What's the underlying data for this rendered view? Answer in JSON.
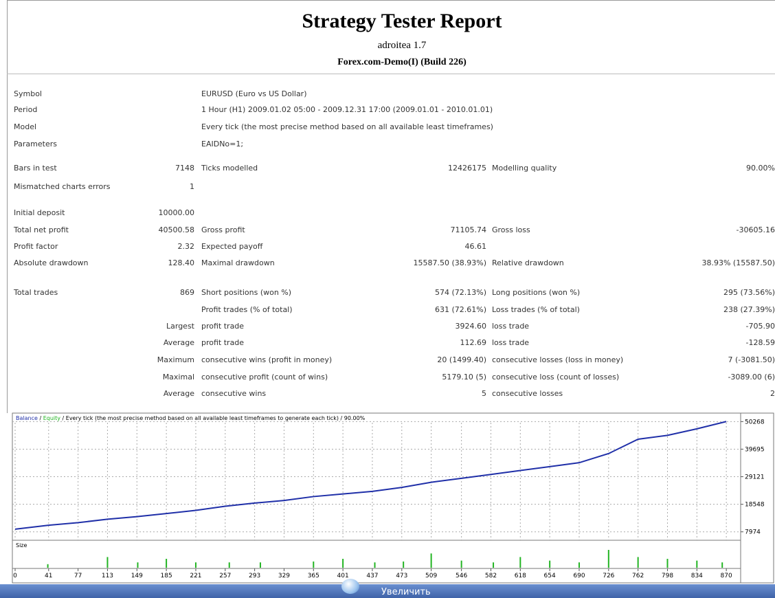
{
  "header": {
    "title": "Strategy Tester Report",
    "subtitle": "adroitea 1.7",
    "server": "Forex.com-Demo(I) (Build 226)"
  },
  "table": {
    "groups": [
      [
        {
          "label": "Symbol",
          "label2": "EURUSD (Euro vs US Dollar)"
        },
        {
          "label": "Period",
          "label2": "1 Hour (H1) 2009.01.02 05:00 - 2009.12.31 17:00 (2009.01.01 - 2010.01.01)"
        },
        {
          "label": "Model",
          "label2": "Every tick (the most precise method based on all available least timeframes)"
        },
        {
          "label": "Parameters",
          "label2": "EAIDNo=1;"
        }
      ],
      [
        {
          "label": "Bars in test",
          "value": "7148",
          "label2": "Ticks modelled",
          "value2": "12426175",
          "label3": "Modelling quality",
          "value3": "90.00%"
        },
        {
          "label": "Mismatched charts errors",
          "value": "1"
        }
      ],
      [
        {
          "label": "Initial deposit",
          "value": "10000.00"
        },
        {
          "label": "Total net profit",
          "value": "40500.58",
          "label2": "Gross profit",
          "value2": "71105.74",
          "label3": "Gross loss",
          "value3": "-30605.16"
        },
        {
          "label": "Profit factor",
          "value": "2.32",
          "label2": "Expected payoff",
          "value2": "46.61"
        },
        {
          "label": "Absolute drawdown",
          "value": "128.40",
          "label2": "Maximal drawdown",
          "value2": "15587.50 (38.93%)",
          "label3": "Relative drawdown",
          "value3": "38.93% (15587.50)"
        }
      ],
      [
        {
          "label": "Total trades",
          "value": "869",
          "label2": "Short positions (won %)",
          "value2": "574 (72.13%)",
          "label3": "Long positions (won %)",
          "value3": "295 (73.56%)"
        },
        {
          "label2": "Profit trades (% of total)",
          "value2": "631 (72.61%)",
          "label3": "Loss trades (% of total)",
          "value3": "238 (27.39%)"
        },
        {
          "value": "Largest",
          "label2": "profit trade",
          "value2": "3924.60",
          "label3": "loss trade",
          "value3": "-705.90"
        },
        {
          "value": "Average",
          "label2": "profit trade",
          "value2": "112.69",
          "label3": "loss trade",
          "value3": "-128.59"
        },
        {
          "value": "Maximum",
          "label2": "consecutive wins (profit in money)",
          "value2": "20 (1499.40)",
          "label3": "consecutive losses (loss in money)",
          "value3": "7 (-3081.50)"
        },
        {
          "value": "Maximal",
          "label2": "consecutive profit (count of wins)",
          "value2": "5179.10 (5)",
          "label3": "consecutive loss (count of losses)",
          "value3": "-3089.00 (6)"
        },
        {
          "value": "Average",
          "label2": "consecutive wins",
          "value2": "5",
          "label3": "consecutive losses",
          "value3": "2"
        }
      ]
    ]
  },
  "chart_data": {
    "type": "line",
    "title": {
      "balance": "Balance",
      "separator": " / ",
      "equity": "Equity",
      "rest": "Every tick (the most precise method based on all available least timeframes to generate each tick)",
      "quality": "90.00%"
    },
    "x": [
      0,
      41,
      77,
      113,
      149,
      185,
      221,
      257,
      293,
      329,
      365,
      401,
      437,
      473,
      509,
      546,
      582,
      618,
      654,
      690,
      726,
      762,
      798,
      834,
      870
    ],
    "series": [
      {
        "name": "Balance",
        "color": "#1f2fa8",
        "values": [
          9000,
          10500,
          11500,
          12800,
          13800,
          15000,
          16200,
          17800,
          19000,
          20000,
          21500,
          22500,
          23500,
          25000,
          27000,
          28500,
          30000,
          31500,
          33000,
          34500,
          38000,
          43500,
          45000,
          47500,
          50300
        ]
      }
    ],
    "xlim": [
      0,
      885
    ],
    "ylim": [
      5000,
      53000
    ],
    "xticks": [
      0,
      41,
      77,
      113,
      149,
      185,
      221,
      257,
      293,
      329,
      365,
      401,
      437,
      473,
      509,
      546,
      582,
      618,
      654,
      690,
      726,
      762,
      798,
      834,
      870
    ],
    "yticks": [
      50268,
      39695,
      29121,
      18548,
      7974
    ],
    "grid": true,
    "size": {
      "label": "Size",
      "color": "#22b422",
      "ylim": [
        0,
        1
      ],
      "x": [
        40,
        113,
        150,
        185,
        221,
        262,
        300,
        365,
        401,
        440,
        475,
        509,
        546,
        585,
        618,
        654,
        690,
        726,
        762,
        798,
        834,
        865
      ],
      "values": [
        0.2,
        0.6,
        0.3,
        0.5,
        0.3,
        0.3,
        0.3,
        0.35,
        0.5,
        0.3,
        0.35,
        0.8,
        0.4,
        0.3,
        0.6,
        0.4,
        0.3,
        1.0,
        0.6,
        0.5,
        0.4,
        0.3
      ]
    }
  },
  "footer": {
    "button": "Увеличить"
  }
}
